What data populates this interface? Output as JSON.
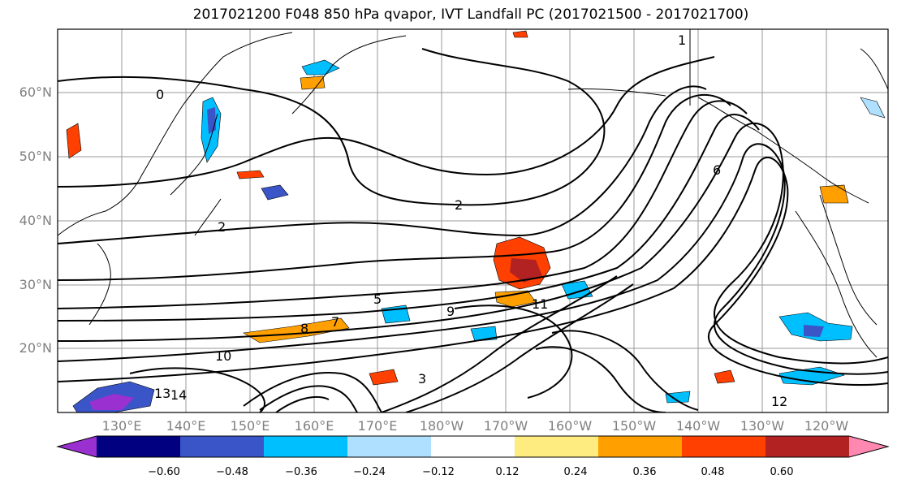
{
  "title": "2017021200 F048 850 hPa qvapor, IVT Landfall PC (2017021500 - 2017021700)",
  "latitude_labels": [
    "60°N",
    "50°N",
    "40°N",
    "30°N",
    "20°N"
  ],
  "longitude_labels": [
    "130°E",
    "140°E",
    "150°E",
    "160°E",
    "170°E",
    "180°W",
    "170°W",
    "160°W",
    "150°W",
    "140°W",
    "130°W",
    "120°W"
  ],
  "colorbar": {
    "ticks": [
      "−0.60",
      "−0.48",
      "−0.36",
      "−0.24",
      "−0.12",
      "0.12",
      "0.24",
      "0.36",
      "0.48",
      "0.60"
    ],
    "colors": [
      "#9b30d0",
      "#000080",
      "#3a55c8",
      "#00bfff",
      "#b0e0ff",
      "#ffffff",
      "#ffec80",
      "#ffa000",
      "#ff4000",
      "#b22222",
      "#ff88b0"
    ]
  },
  "contour_labels": [
    "0",
    "1",
    "2",
    "2",
    "5",
    "6",
    "7",
    "8",
    "9",
    "10",
    "11",
    "12",
    "13",
    "14",
    "3"
  ]
}
